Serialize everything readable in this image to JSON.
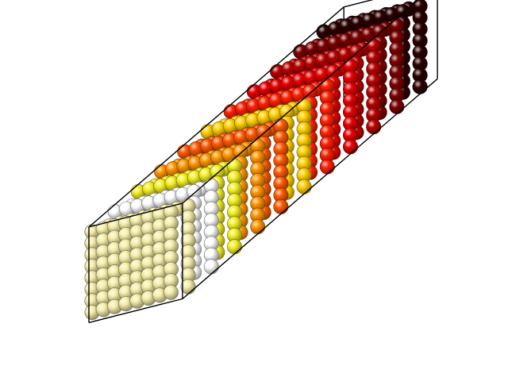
{
  "figure": {
    "subject": "atomic-crystal-slab",
    "layers": [
      {
        "name": "top-surface",
        "color": "#f5eeaa"
      },
      {
        "name": "layer-2",
        "color": "#ffffff"
      },
      {
        "name": "layer-3",
        "color": "#f4f028"
      },
      {
        "name": "layer-4",
        "color": "#ff9500"
      },
      {
        "name": "layer-5",
        "color": "#ff5a00"
      },
      {
        "name": "layer-6",
        "color": "#ffd000"
      },
      {
        "name": "layer-7",
        "color": "#ff2000"
      },
      {
        "name": "layer-8",
        "color": "#e60000"
      },
      {
        "name": "layer-9",
        "color": "#b80000"
      },
      {
        "name": "layer-10",
        "color": "#7a0000"
      },
      {
        "name": "bottom-surface",
        "color": "#2a0000"
      }
    ],
    "box_color": "#000000"
  }
}
